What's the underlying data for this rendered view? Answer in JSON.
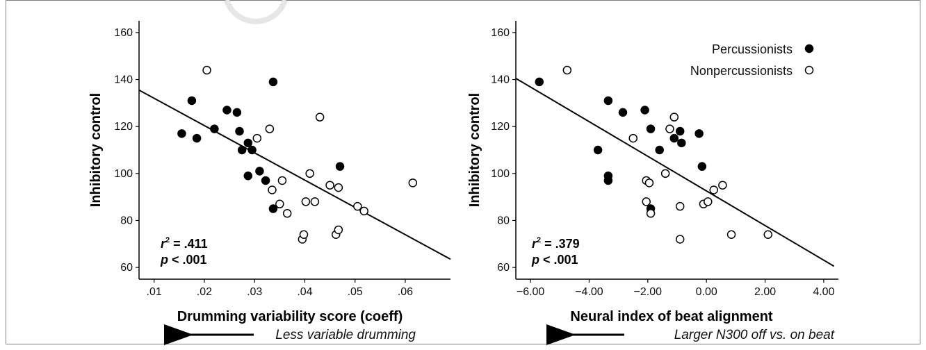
{
  "chart_data": [
    {
      "type": "scatter",
      "xlabel": "Drumming variability score (coeff)",
      "ylabel": "Inhibitory control",
      "xlim": [
        0.007,
        0.069
      ],
      "ylim": [
        55,
        165
      ],
      "x_ticks": [
        0.01,
        0.02,
        0.03,
        0.04,
        0.05,
        0.06
      ],
      "x_tick_labels": [
        ".01",
        ".02",
        ".03",
        ".04",
        ".05",
        ".06"
      ],
      "y_ticks": [
        60,
        80,
        100,
        120,
        140,
        160
      ],
      "y_tick_labels": [
        "60",
        "80",
        "100",
        "120",
        "140",
        "160"
      ],
      "stats": {
        "r2_symbol": "r",
        "r2_exp": "2",
        "r2_rest": " = .411",
        "p_symbol": "p",
        "p_rest": " < .001"
      },
      "arrow_note": "Less variable drumming",
      "fit_line": {
        "x": [
          0.007,
          0.069
        ],
        "y": [
          135.5,
          63.5
        ]
      },
      "series": [
        {
          "marker": "filled",
          "points": [
            [
              0.0155,
              117
            ],
            [
              0.0175,
              131
            ],
            [
              0.0185,
              115
            ],
            [
              0.022,
              119
            ],
            [
              0.0245,
              127
            ],
            [
              0.0265,
              126
            ],
            [
              0.027,
              118
            ],
            [
              0.0275,
              110
            ],
            [
              0.0287,
              113
            ],
            [
              0.0287,
              99
            ],
            [
              0.0295,
              110
            ],
            [
              0.031,
              101
            ],
            [
              0.0322,
              97
            ],
            [
              0.0337,
              139
            ],
            [
              0.0337,
              85
            ],
            [
              0.047,
              103
            ]
          ]
        },
        {
          "marker": "open",
          "points": [
            [
              0.0205,
              144
            ],
            [
              0.0305,
              115
            ],
            [
              0.033,
              119
            ],
            [
              0.0335,
              93
            ],
            [
              0.035,
              87
            ],
            [
              0.0355,
              97
            ],
            [
              0.0365,
              83
            ],
            [
              0.0395,
              72
            ],
            [
              0.0398,
              74
            ],
            [
              0.0402,
              88
            ],
            [
              0.041,
              100
            ],
            [
              0.042,
              88
            ],
            [
              0.043,
              124
            ],
            [
              0.045,
              95
            ],
            [
              0.0462,
              74
            ],
            [
              0.0467,
              94
            ],
            [
              0.0467,
              76
            ],
            [
              0.0505,
              86
            ],
            [
              0.0518,
              84
            ],
            [
              0.0615,
              96
            ]
          ]
        }
      ]
    },
    {
      "type": "scatter",
      "xlabel": "Neural index of beat alignment",
      "ylabel": "Inhibitory control",
      "xlim": [
        -6.5,
        4.5
      ],
      "ylim": [
        55,
        165
      ],
      "x_ticks": [
        -6,
        -4,
        -2,
        0,
        2,
        4
      ],
      "x_tick_labels": [
        "−6.00",
        "−4.00",
        "−2.00",
        "0.00",
        "2.00",
        "4.00"
      ],
      "y_ticks": [
        60,
        80,
        100,
        120,
        140,
        160
      ],
      "y_tick_labels": [
        "60",
        "80",
        "100",
        "120",
        "140",
        "160"
      ],
      "stats": {
        "r2_symbol": "r",
        "r2_exp": "2",
        "r2_rest": " = .379",
        "p_symbol": "p",
        "p_rest": " < .001"
      },
      "arrow_note": "Larger N300 off vs. on beat",
      "fit_line": {
        "x": [
          -6.5,
          4.35
        ],
        "y": [
          140.5,
          60.5
        ]
      },
      "legend": {
        "position": "top-right",
        "entries": [
          "Percussionists",
          "Nonpercussionists"
        ]
      },
      "series": [
        {
          "name": "Percussionists",
          "marker": "filled",
          "points": [
            [
              -5.7,
              139
            ],
            [
              -3.35,
              131
            ],
            [
              -2.85,
              126
            ],
            [
              -2.1,
              127
            ],
            [
              -1.9,
              119
            ],
            [
              -3.35,
              99
            ],
            [
              -3.35,
              97
            ],
            [
              -3.7,
              110
            ],
            [
              -1.6,
              110
            ],
            [
              -1.1,
              115
            ],
            [
              -0.9,
              118
            ],
            [
              -0.85,
              113
            ],
            [
              -0.25,
              117
            ],
            [
              -0.15,
              103
            ],
            [
              -1.9,
              85
            ]
          ]
        },
        {
          "name": "Nonpercussionists",
          "marker": "open",
          "points": [
            [
              -4.75,
              144
            ],
            [
              -2.5,
              115
            ],
            [
              -1.25,
              119
            ],
            [
              -1.1,
              124
            ],
            [
              -2.05,
              97
            ],
            [
              -1.95,
              96
            ],
            [
              -2.05,
              88
            ],
            [
              -1.9,
              83
            ],
            [
              -1.4,
              100
            ],
            [
              -0.9,
              86
            ],
            [
              -0.9,
              72
            ],
            [
              -0.1,
              87
            ],
            [
              0.05,
              88
            ],
            [
              0.25,
              93
            ],
            [
              0.55,
              95
            ],
            [
              0.85,
              74
            ],
            [
              2.1,
              74
            ]
          ]
        }
      ]
    }
  ]
}
